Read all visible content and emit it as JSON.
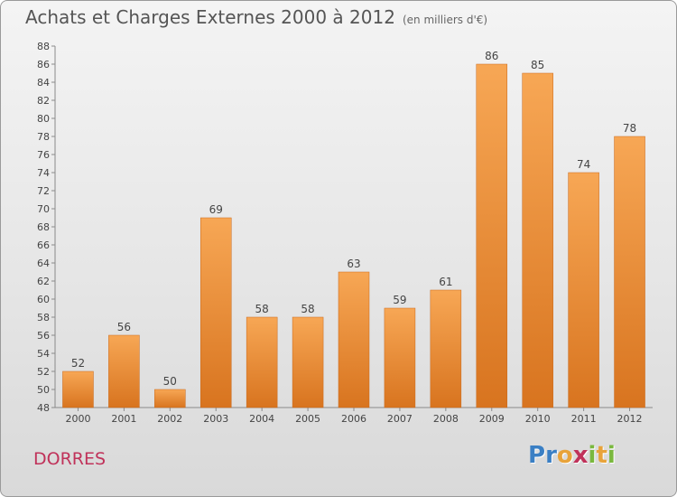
{
  "header": {
    "title": "Achats et Charges Externes 2000 à 2012",
    "unit": "(en milliers d'€)"
  },
  "footer": {
    "commune": "DORRES",
    "logo_letters": [
      {
        "char": "P",
        "color": "#3a7fc4"
      },
      {
        "char": "r",
        "color": "#3a7fc4"
      },
      {
        "char": "o",
        "color": "#e8a33a"
      },
      {
        "char": "x",
        "color": "#c0325a"
      },
      {
        "char": "i",
        "color": "#7ab83e"
      },
      {
        "char": "t",
        "color": "#e8a33a"
      },
      {
        "char": "i",
        "color": "#7ab83e"
      }
    ]
  },
  "chart_data": {
    "type": "bar",
    "title": "Achats et Charges Externes 2000 à 2012",
    "subtitle": "(en milliers d'€)",
    "categories": [
      "2000",
      "2001",
      "2002",
      "2003",
      "2004",
      "2005",
      "2006",
      "2007",
      "2008",
      "2009",
      "2010",
      "2011",
      "2012"
    ],
    "values": [
      52,
      56,
      50,
      69,
      58,
      58,
      63,
      59,
      61,
      86,
      85,
      74,
      78
    ],
    "ylim": [
      48,
      88
    ],
    "ytick_step": 2,
    "grid": false,
    "bar_color_top": "#f7a755",
    "bar_color_bottom": "#d8741f",
    "axis_color": "#8a8a8a"
  }
}
